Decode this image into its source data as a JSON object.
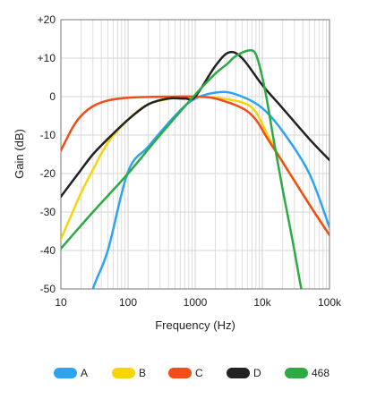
{
  "chart_data": {
    "type": "line",
    "title": "",
    "xlabel": "Frequency (Hz)",
    "ylabel": "Gain (dB)",
    "x_scale": "log",
    "xlim": [
      10,
      100000
    ],
    "ylim": [
      -50,
      20
    ],
    "x_tick_values": [
      10,
      100,
      1000,
      10000,
      100000
    ],
    "x_tick_labels": [
      "10",
      "100",
      "1000",
      "10k",
      "100k"
    ],
    "y_tick_values": [
      20,
      10,
      0,
      -10,
      -20,
      -30,
      -40,
      -50
    ],
    "y_tick_labels": [
      "+20",
      "+10",
      "0",
      "-10",
      "-20",
      "-30",
      "-40",
      "-50"
    ],
    "grid": true,
    "legend_position": "bottom",
    "series": [
      {
        "name": "A",
        "color": "#2ea3f2",
        "x": [
          20,
          30,
          50,
          100,
          200,
          500,
          1000,
          2500,
          5000,
          10000,
          20000,
          50000,
          100000
        ],
        "y": [
          -62,
          -50,
          -40,
          -19.5,
          -13,
          -5,
          -0.5,
          1.2,
          0,
          -3,
          -9,
          -20,
          -34
        ]
      },
      {
        "name": "B",
        "color": "#f5d60a",
        "x": [
          10,
          15,
          20,
          30,
          50,
          100,
          200,
          500,
          1000,
          2000,
          5000,
          8000,
          12000,
          20000,
          50000,
          100000
        ],
        "y": [
          -37,
          -30,
          -25,
          -19,
          -12,
          -6,
          -2,
          -0.3,
          0,
          -0.3,
          -1.5,
          -4,
          -10,
          -17,
          -28,
          -36
        ]
      },
      {
        "name": "C",
        "color": "#f04e18",
        "x": [
          10,
          15,
          20,
          30,
          50,
          100,
          200,
          500,
          1000,
          2000,
          5000,
          8000,
          12000,
          20000,
          50000,
          100000
        ],
        "y": [
          -14,
          -8,
          -5,
          -2.5,
          -1,
          -0.3,
          -0.1,
          0,
          0,
          -0.5,
          -3,
          -6,
          -11,
          -17,
          -28,
          -36
        ]
      },
      {
        "name": "D",
        "color": "#222222",
        "x": [
          10,
          20,
          30,
          50,
          100,
          200,
          400,
          700,
          1000,
          2000,
          3200,
          5000,
          10000,
          20000,
          50000,
          100000
        ],
        "y": [
          -26,
          -19,
          -15,
          -11,
          -6,
          -2,
          -0.5,
          -0.5,
          0,
          8,
          11.5,
          10,
          3,
          -3,
          -11,
          -16.5
        ]
      },
      {
        "name": "468",
        "color": "#2eaa45",
        "x": [
          10,
          30,
          100,
          300,
          1000,
          2000,
          3000,
          4000,
          6300,
          8000,
          10000,
          12000,
          15000,
          20000,
          30000,
          50000
        ],
        "y": [
          -39.5,
          -30,
          -20,
          -10,
          0.5,
          6,
          8.5,
          10.5,
          12,
          11,
          5,
          -2,
          -12,
          -24,
          -40,
          -62
        ]
      }
    ]
  }
}
